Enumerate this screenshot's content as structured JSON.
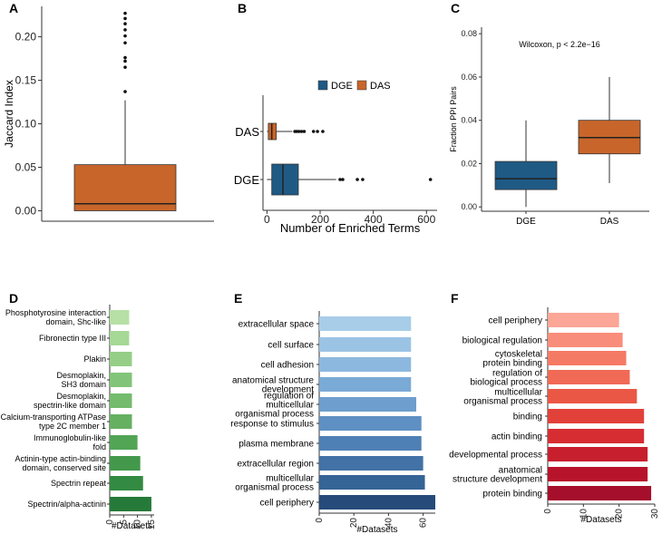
{
  "panel_labels": [
    "A",
    "B",
    "C",
    "D",
    "E",
    "F"
  ],
  "chart_data": [
    {
      "panel": "A",
      "type": "box",
      "ylabel": "Jaccard Index",
      "xlabel": "",
      "ylim": [
        -0.012,
        0.235
      ],
      "yticks": [
        0.0,
        0.05,
        0.1,
        0.15,
        0.2
      ],
      "ytick_labels": [
        "0.00",
        "0.05",
        "0.10",
        "0.15",
        "0.20"
      ],
      "box": {
        "q1": 0.0,
        "median": 0.008,
        "q3": 0.053,
        "whisker_low": 0.0,
        "whisker_high": 0.127
      },
      "outliers": [
        0.137,
        0.165,
        0.172,
        0.176,
        0.193,
        0.201,
        0.208,
        0.215,
        0.221,
        0.227
      ],
      "color": "#c8652a"
    },
    {
      "panel": "B",
      "type": "box_horizontal",
      "xlabel": "Number of Enriched Terms",
      "ylabel": "",
      "xlim": [
        -15,
        640
      ],
      "xticks": [
        0,
        200,
        400,
        600
      ],
      "xtick_labels": [
        "0",
        "200",
        "400",
        "600"
      ],
      "legend": [
        "DGE",
        "DAS"
      ],
      "series": [
        {
          "name": "DAS",
          "color": "#c8652a",
          "q1": 5,
          "median": 18,
          "q3": 35,
          "whisker_low": 0,
          "whisker_high": 95,
          "outliers": [
            105,
            112,
            120,
            130,
            140,
            175,
            190,
            210
          ]
        },
        {
          "name": "DGE",
          "color": "#1f5a85",
          "q1": 18,
          "median": 60,
          "q3": 118,
          "whisker_low": 0,
          "whisker_high": 260,
          "outliers": [
            275,
            285,
            340,
            360,
            615
          ]
        }
      ]
    },
    {
      "panel": "C",
      "type": "box",
      "ylabel": "Fraction PPI Pairs",
      "xlabel": "",
      "annotation": "Wilcoxon, p < 2.2e−16",
      "ylim": [
        -0.002,
        0.083
      ],
      "yticks": [
        0.0,
        0.02,
        0.04,
        0.06,
        0.08
      ],
      "ytick_labels": [
        "0.00",
        "0.02",
        "0.04",
        "0.06",
        "0.08"
      ],
      "categories": [
        "DGE",
        "DAS"
      ],
      "series": [
        {
          "name": "DGE",
          "color": "#1f5a85",
          "q1": 0.008,
          "median": 0.013,
          "q3": 0.021,
          "whisker_low": 0.0,
          "whisker_high": 0.04
        },
        {
          "name": "DAS",
          "color": "#c8652a",
          "q1": 0.0245,
          "median": 0.032,
          "q3": 0.04,
          "whisker_low": 0.011,
          "whisker_high": 0.06
        }
      ]
    },
    {
      "panel": "D",
      "type": "bar_horizontal",
      "xlabel": "#Datasets",
      "xlim": [
        0,
        16
      ],
      "xticks": [
        0,
        5,
        10,
        15
      ],
      "xtick_labels": [
        "0",
        "5",
        "10",
        "15"
      ],
      "categories": [
        "Phosphotyrosine interaction\ndomain, Shc-like",
        "Fibronectin type III",
        "Plakin",
        "Desmoplakin,\nSH3 domain",
        "Desmoplakin,\nspectrin-like domain",
        "Calcium-transporting ATPase\ntype 2C member 1",
        "Immunoglobulin-like\nfold",
        "Actinin-type actin-binding\ndomain, conserved site",
        "Spectrin repeat",
        "Spectrin/alpha-actinin"
      ],
      "values": [
        7,
        7,
        8,
        8,
        8,
        8,
        10,
        11,
        12,
        15
      ],
      "colors": [
        "#b6e0a6",
        "#a6d896",
        "#95cf87",
        "#82c479",
        "#74bb6d",
        "#66b062",
        "#52a555",
        "#43984b",
        "#338a42",
        "#267a39"
      ]
    },
    {
      "panel": "E",
      "type": "bar_horizontal",
      "xlabel": "#Datasets",
      "xlim": [
        0,
        67
      ],
      "xticks": [
        0,
        20,
        40,
        60
      ],
      "xtick_labels": [
        "0",
        "20",
        "40",
        "60"
      ],
      "categories": [
        "extracellular space",
        "cell surface",
        "cell adhesion",
        "anatomical structure\ndevelopment",
        "regulation of\nmulticellular\norganismal process",
        "response to stimulus",
        "plasma membrane",
        "extracellular region",
        "multicellular\norganismal process",
        "cell periphery"
      ],
      "values": [
        53,
        53,
        53,
        53,
        56,
        59,
        59,
        60,
        61,
        67
      ],
      "colors": [
        "#a8cde9",
        "#9bc3e4",
        "#8cb8df",
        "#7aaad6",
        "#6d9ecd",
        "#5e90c3",
        "#4f80b5",
        "#4272a6",
        "#356496",
        "#264a7a"
      ]
    },
    {
      "panel": "F",
      "type": "bar_horizontal",
      "xlabel": "#Datasets",
      "xlim": [
        0,
        30
      ],
      "xticks": [
        0,
        10,
        20,
        30
      ],
      "xtick_labels": [
        "0",
        "10",
        "20",
        "30"
      ],
      "categories": [
        "cell periphery",
        "biological regulation",
        "cytoskeletal\nprotein binding",
        "regulation of\nbiological process",
        "multicellular\norganismal process",
        "binding",
        "actin binding",
        "developmental process",
        "anatomical\nstructure development",
        "protein binding"
      ],
      "values": [
        20,
        21,
        22,
        23,
        25,
        27,
        27,
        28,
        28,
        29
      ],
      "colors": [
        "#fba696",
        "#f98d7b",
        "#f57a66",
        "#f06a56",
        "#ea5745",
        "#e2413a",
        "#d62d33",
        "#c81f2f",
        "#b7132b",
        "#a50f2c"
      ]
    }
  ]
}
